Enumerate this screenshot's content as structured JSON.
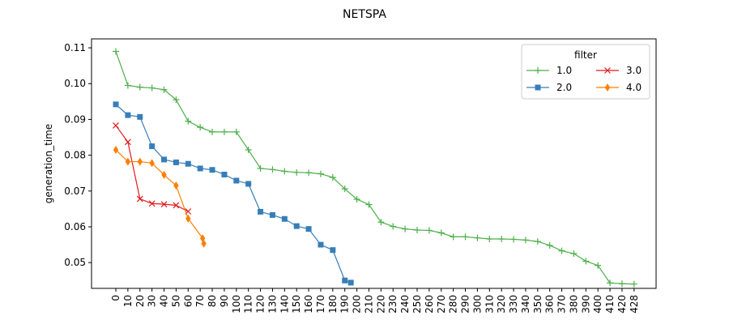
{
  "chart_data": {
    "type": "line",
    "title": "NETSPA",
    "xlabel": "",
    "ylabel": "generation_time",
    "x_tick_labels": [
      "0",
      "10",
      "20",
      "30",
      "40",
      "50",
      "60",
      "70",
      "80",
      "90",
      "100",
      "110",
      "120",
      "130",
      "140",
      "150",
      "160",
      "170",
      "180",
      "190",
      "200",
      "210",
      "220",
      "230",
      "240",
      "250",
      "260",
      "270",
      "280",
      "290",
      "300",
      "310",
      "320",
      "330",
      "340",
      "350",
      "360",
      "370",
      "380",
      "390",
      "400",
      "410",
      "420",
      "428"
    ],
    "y_ticks": [
      0.05,
      0.06,
      0.07,
      0.08,
      0.09,
      0.1,
      0.11
    ],
    "y_tick_labels": [
      "0.05",
      "0.06",
      "0.07",
      "0.08",
      "0.09",
      "0.10",
      "0.11"
    ],
    "ylim": [
      0.0428,
      0.1125
    ],
    "grid": false,
    "legend": {
      "title": "filter",
      "placement": "top-right",
      "columns": 2
    },
    "series": [
      {
        "name": "1.0",
        "color": "#4daf4a",
        "marker": "plus",
        "x": [
          0,
          10,
          20,
          30,
          40,
          50,
          60,
          70,
          80,
          90,
          100,
          110,
          120,
          130,
          140,
          150,
          160,
          170,
          180,
          190,
          200,
          210,
          220,
          230,
          240,
          250,
          260,
          270,
          280,
          290,
          300,
          310,
          320,
          330,
          340,
          350,
          360,
          370,
          380,
          390,
          400,
          410,
          420,
          428
        ],
        "y": [
          0.109,
          0.0995,
          0.099,
          0.0988,
          0.0983,
          0.0955,
          0.0895,
          0.0878,
          0.0865,
          0.0865,
          0.0865,
          0.0815,
          0.0763,
          0.076,
          0.0755,
          0.0752,
          0.0751,
          0.0748,
          0.0738,
          0.0706,
          0.0677,
          0.0662,
          0.0613,
          0.0601,
          0.0594,
          0.0591,
          0.059,
          0.0583,
          0.0572,
          0.0572,
          0.0569,
          0.0566,
          0.0566,
          0.0565,
          0.0563,
          0.0559,
          0.0548,
          0.0533,
          0.0525,
          0.0504,
          0.0492,
          0.0443,
          0.0441,
          0.044
        ]
      },
      {
        "name": "2.0",
        "color": "#377eb8",
        "marker": "square",
        "x": [
          0,
          10,
          20,
          30,
          40,
          50,
          60,
          70,
          80,
          90,
          100,
          110,
          120,
          130,
          140,
          150,
          160,
          170,
          180,
          190,
          195
        ],
        "y": [
          0.0942,
          0.0912,
          0.0907,
          0.0825,
          0.0788,
          0.078,
          0.0776,
          0.0763,
          0.0759,
          0.0746,
          0.0729,
          0.072,
          0.0642,
          0.0633,
          0.0622,
          0.0602,
          0.0594,
          0.055,
          0.0535,
          0.045,
          0.0444
        ]
      },
      {
        "name": "3.0",
        "color": "#e41a1c",
        "marker": "x",
        "x": [
          0,
          10,
          20,
          30,
          40,
          50,
          60
        ],
        "y": [
          0.0883,
          0.0837,
          0.0678,
          0.0665,
          0.0663,
          0.066,
          0.0643
        ]
      },
      {
        "name": "4.0",
        "color": "#ff7f00",
        "marker": "diamond",
        "x": [
          0,
          10,
          20,
          30,
          40,
          50,
          60,
          72,
          73
        ],
        "y": [
          0.0815,
          0.0782,
          0.0782,
          0.0778,
          0.0745,
          0.0715,
          0.0623,
          0.0568,
          0.0553
        ]
      }
    ]
  }
}
